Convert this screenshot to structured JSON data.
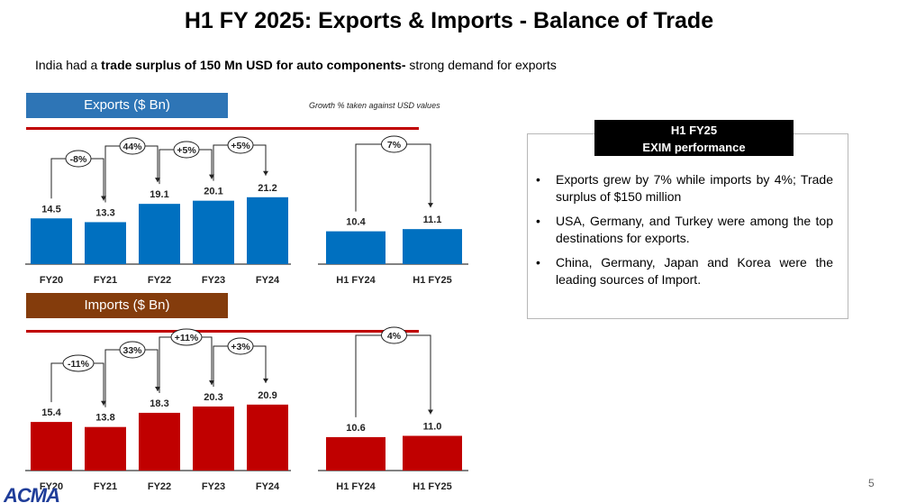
{
  "title": "H1 FY 2025: Exports & Imports - Balance of Trade",
  "subtitle": {
    "prefix": "India had a ",
    "bold": "trade surplus of 150 Mn USD for auto components-",
    "suffix": " strong demand for exports"
  },
  "growth_note": "Growth % taken against USD values",
  "panel": {
    "title_line1": "H1 FY25",
    "title_line2": "EXIM performance",
    "bullets": [
      "Exports grew by 7% while imports by 4%; Trade surplus of $150 million",
      "USA, Germany, and Turkey were among the top destinations for exports.",
      "China, Germany, Japan and Korea were the leading sources of Import."
    ]
  },
  "page_number": "5",
  "logo_text": "ACMA",
  "colors": {
    "exports": "#0070c0",
    "imports": "#c00000",
    "exports_header": "#2e75b6",
    "imports_header": "#843c0c",
    "rule": "#c00000"
  },
  "chart_data": [
    {
      "type": "bar",
      "title": "Exports ($ Bn)",
      "categories": [
        "FY20",
        "FY21",
        "FY22",
        "FY23",
        "FY24"
      ],
      "values": [
        14.5,
        13.3,
        19.1,
        20.1,
        21.2
      ],
      "labels": [
        "14.5",
        "13.3",
        "19.1",
        "20.1",
        "21.2"
      ],
      "growth": [
        "-8%",
        "44%",
        "+5%",
        "+5%"
      ]
    },
    {
      "type": "bar",
      "title": "Exports ($ Bn)",
      "categories": [
        "H1 FY24",
        "H1 FY25"
      ],
      "values": [
        10.4,
        11.1
      ],
      "labels": [
        "10.4",
        "11.1"
      ],
      "growth": [
        "7%"
      ]
    },
    {
      "type": "bar",
      "title": "Imports ($ Bn)",
      "categories": [
        "FY20",
        "FY21",
        "FY22",
        "FY23",
        "FY24"
      ],
      "values": [
        15.4,
        13.8,
        18.3,
        20.3,
        20.9
      ],
      "labels": [
        "15.4",
        "13.8",
        "18.3",
        "20.3",
        "20.9"
      ],
      "growth": [
        "-11%",
        "33%",
        "+11%",
        "+3%"
      ]
    },
    {
      "type": "bar",
      "title": "Imports ($ Bn)",
      "categories": [
        "H1 FY24",
        "H1 FY25"
      ],
      "values": [
        10.6,
        11.0
      ],
      "labels": [
        "10.6",
        "11.0"
      ],
      "growth": [
        "4%"
      ]
    }
  ]
}
